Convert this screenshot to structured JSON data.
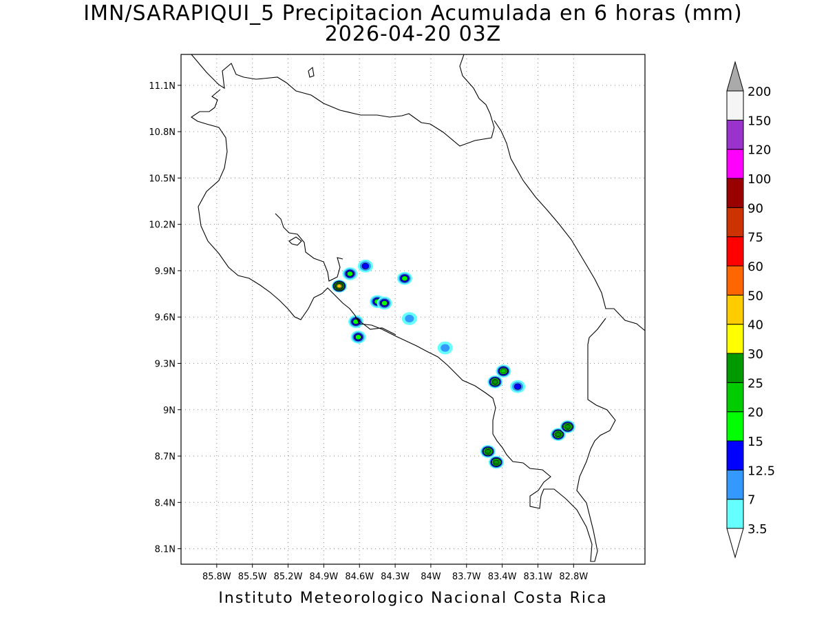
{
  "title": {
    "line1": "IMN/SARAPIQUI_5 Precipitacion Acumulada en 6 horas (mm)",
    "line2": "2026-04-20 03Z"
  },
  "footer": "Instituto Meteorologico Nacional Costa Rica",
  "map": {
    "lon_range": [
      -86.1,
      -82.2
    ],
    "lat_range": [
      8.0,
      11.3
    ],
    "lon_ticks": [
      "85.8W",
      "85.5W",
      "85.2W",
      "84.9W",
      "84.6W",
      "84.3W",
      "84W",
      "83.7W",
      "83.4W",
      "83.1W",
      "82.8W"
    ],
    "lon_values": [
      -85.8,
      -85.5,
      -85.2,
      -84.9,
      -84.6,
      -84.3,
      -84.0,
      -83.7,
      -83.4,
      -83.1,
      -82.8
    ],
    "lat_ticks": [
      "11.1N",
      "10.8N",
      "10.5N",
      "10.2N",
      "9.9N",
      "9.6N",
      "9.3N",
      "9N",
      "8.7N",
      "8.4N",
      "8.1N"
    ],
    "lat_values": [
      11.1,
      10.8,
      10.5,
      10.2,
      9.9,
      9.6,
      9.3,
      9.0,
      8.7,
      8.4,
      8.1
    ],
    "grid": "dotted"
  },
  "colorbar": {
    "labels": [
      "3.5",
      "7",
      "12.5",
      "15",
      "20",
      "25",
      "30",
      "40",
      "50",
      "60",
      "75",
      "90",
      "100",
      "120",
      "150",
      "200"
    ],
    "colors": [
      "#66ffff",
      "#3399ff",
      "#0000ff",
      "#00ff00",
      "#00cc00",
      "#009900",
      "#ffff00",
      "#ffcc00",
      "#ff6600",
      "#ff0000",
      "#cc3300",
      "#990000",
      "#ff00ff",
      "#9933cc",
      "#f5f5f5"
    ],
    "top_arrow_color": "#aaaaaa",
    "bottom_arrow_color": "#ffffff"
  },
  "precip_cells": [
    {
      "lon": -84.77,
      "lat": 9.8,
      "level": 7
    },
    {
      "lon": -84.68,
      "lat": 9.88,
      "level": 3
    },
    {
      "lon": -84.55,
      "lat": 9.93,
      "level": 2
    },
    {
      "lon": -84.45,
      "lat": 9.7,
      "level": 3
    },
    {
      "lon": -84.39,
      "lat": 9.69,
      "level": 3
    },
    {
      "lon": -84.22,
      "lat": 9.85,
      "level": 3
    },
    {
      "lon": -84.63,
      "lat": 9.57,
      "level": 3
    },
    {
      "lon": -84.61,
      "lat": 9.47,
      "level": 3
    },
    {
      "lon": -84.18,
      "lat": 9.59,
      "level": 1
    },
    {
      "lon": -83.88,
      "lat": 9.4,
      "level": 1
    },
    {
      "lon": -83.46,
      "lat": 9.18,
      "level": 5
    },
    {
      "lon": -83.39,
      "lat": 9.25,
      "level": 4
    },
    {
      "lon": -83.27,
      "lat": 9.15,
      "level": 2
    },
    {
      "lon": -83.45,
      "lat": 8.66,
      "level": 5
    },
    {
      "lon": -83.52,
      "lat": 8.73,
      "level": 5
    },
    {
      "lon": -82.93,
      "lat": 8.84,
      "level": 5
    },
    {
      "lon": -82.85,
      "lat": 8.89,
      "level": 5
    }
  ]
}
